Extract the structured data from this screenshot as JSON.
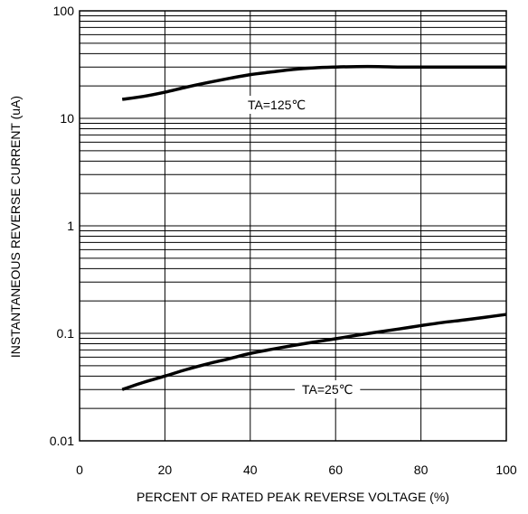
{
  "chart_data": {
    "type": "line",
    "title": "",
    "xlabel": "PERCENT OF RATED PEAK REVERSE VOLTAGE (%)",
    "ylabel": "INSTANTANEOUS REVERSE CURRENT (uA)",
    "xlim": [
      0,
      100
    ],
    "ylim": [
      0.01,
      100
    ],
    "yscale": "log",
    "grid": true,
    "x_ticks": [
      0,
      20,
      40,
      60,
      80,
      100
    ],
    "x_tick_labels": [
      "0",
      "20",
      "40",
      "60",
      "80",
      "100"
    ],
    "y_ticks": [
      0.01,
      0.1,
      1,
      10,
      100
    ],
    "y_tick_labels": [
      "0.01",
      "0.1",
      "1",
      "10",
      "100"
    ],
    "series": [
      {
        "name": "TA=125℃",
        "x": [
          10,
          15,
          20,
          25,
          30,
          35,
          40,
          45,
          50,
          55,
          60,
          65,
          70,
          75,
          80,
          85,
          90,
          95,
          100
        ],
        "y": [
          15,
          16,
          17.5,
          19.5,
          21.5,
          23.5,
          25.5,
          27,
          28.5,
          29.5,
          30,
          30.3,
          30.3,
          30,
          30,
          30,
          30,
          30,
          30
        ]
      },
      {
        "name": "TA=25℃",
        "x": [
          10,
          15,
          20,
          25,
          30,
          35,
          40,
          45,
          50,
          55,
          60,
          65,
          70,
          75,
          80,
          85,
          90,
          95,
          100
        ],
        "y": [
          0.03,
          0.035,
          0.04,
          0.046,
          0.052,
          0.058,
          0.065,
          0.071,
          0.077,
          0.083,
          0.089,
          0.096,
          0.103,
          0.11,
          0.118,
          0.126,
          0.133,
          0.141,
          0.15
        ]
      }
    ],
    "annotations": [
      "TA=125℃",
      "TA=25℃"
    ],
    "line_color": "#000000",
    "grid_color": "#000000",
    "background": "#ffffff"
  }
}
